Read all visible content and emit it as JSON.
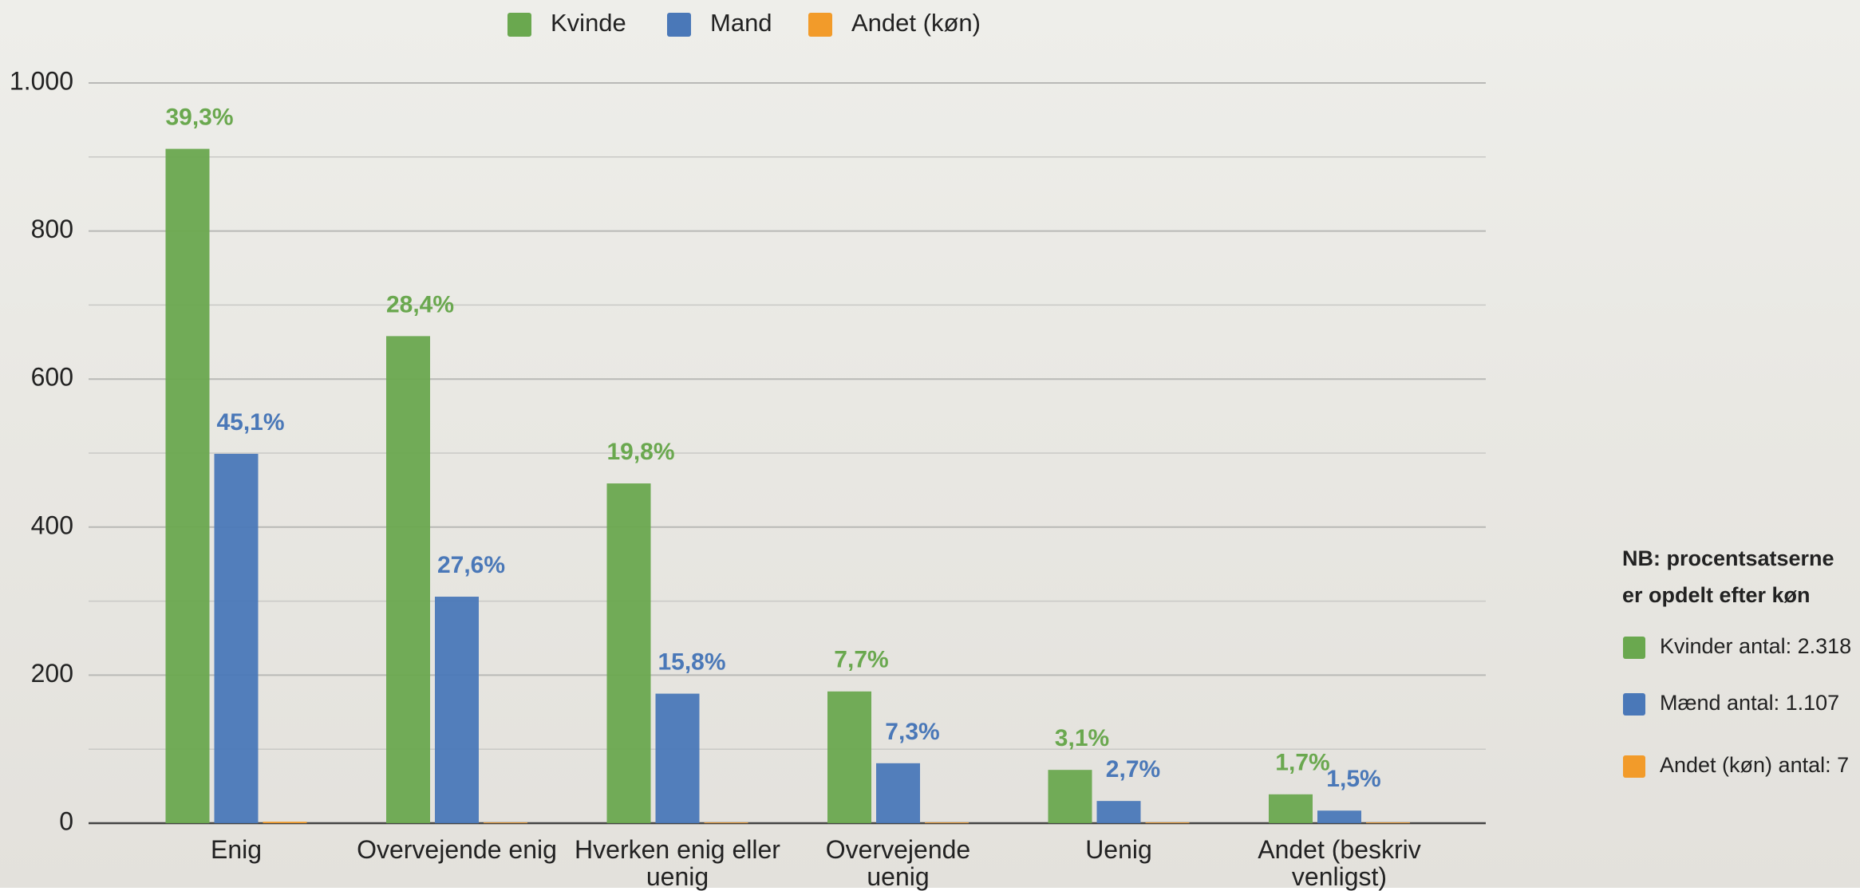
{
  "chart_data": {
    "type": "bar",
    "categories": [
      "Enig",
      "Overvejende enig",
      "Hverken enig eller uenig",
      "Overvejende uenig",
      "Uenig",
      "Andet (beskriv venligst)"
    ],
    "series": [
      {
        "name": "Kvinde",
        "color": "#6aa84f",
        "values": [
          911,
          658,
          459,
          178,
          72,
          39
        ],
        "percent_labels": [
          "39,3%",
          "28,4%",
          "19,8%",
          "7,7%",
          "3,1%",
          "1,7%"
        ]
      },
      {
        "name": "Mand",
        "color": "#4a78b8",
        "values": [
          499,
          306,
          175,
          81,
          30,
          17
        ],
        "percent_labels": [
          "45,1%",
          "27,6%",
          "15,8%",
          "7,3%",
          "2,7%",
          "1,5%"
        ]
      },
      {
        "name": "Andet (køn)",
        "color": "#f29b2a",
        "values": [
          2,
          1,
          1,
          1,
          1,
          1
        ]
      }
    ],
    "ylim": [
      0,
      1000
    ],
    "yticks": [
      0,
      200,
      400,
      600,
      800,
      {
        "value": 1000,
        "label": "1.000"
      }
    ],
    "minor_gridlines": [
      100,
      300,
      500,
      700,
      900
    ],
    "grid": true,
    "legend": "top",
    "note": {
      "lines": [
        "NB: procentsatserne",
        "er opdelt efter køn"
      ],
      "items": [
        {
          "label": "Kvinder antal: 2.318",
          "color": "#6aa84f"
        },
        {
          "label": "Mænd antal: 1.107",
          "color": "#4a78b8"
        },
        {
          "label": "Andet (køn) antal: 7",
          "color": "#f29b2a"
        }
      ]
    }
  }
}
